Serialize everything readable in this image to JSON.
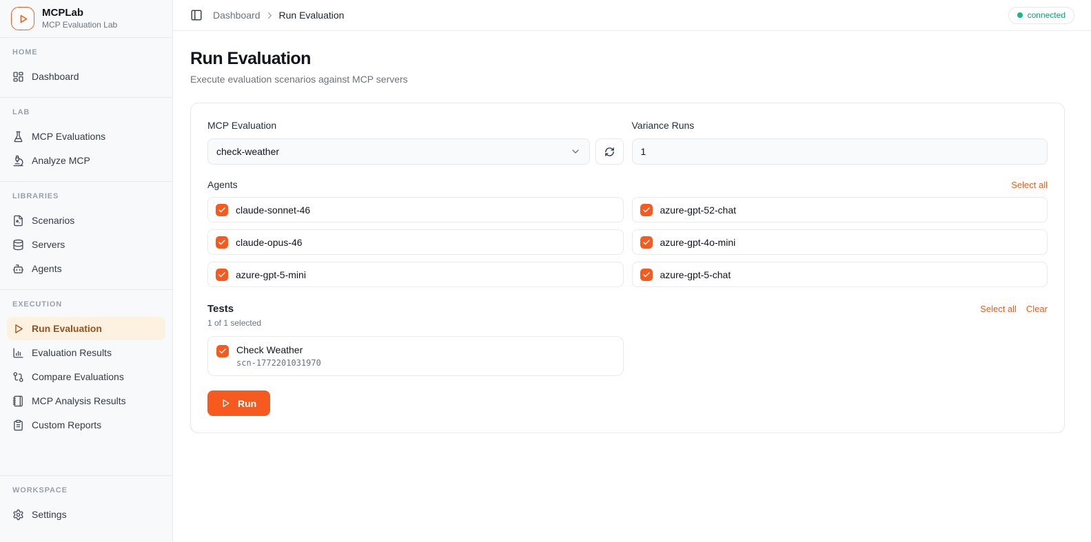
{
  "colors": {
    "accent": "#f65a1e",
    "accent-soft": "#fdf1e0",
    "active-text": "#9a501d",
    "status-green": "#0f9d6e",
    "status-dot": "#12b981"
  },
  "app": {
    "name": "MCPLab",
    "tagline": "MCP Evaluation Lab"
  },
  "topbar": {
    "breadcrumb": {
      "parent": "Dashboard",
      "current": "Run Evaluation"
    },
    "status": {
      "label": "connected"
    }
  },
  "sidebar": {
    "sections": [
      {
        "heading": "HOME",
        "items": [
          {
            "label": "Dashboard",
            "icon": "dashboard-grid-icon",
            "active": false
          }
        ]
      },
      {
        "heading": "LAB",
        "items": [
          {
            "label": "MCP Evaluations",
            "icon": "flask-icon",
            "active": false
          },
          {
            "label": "Analyze MCP",
            "icon": "microscope-icon",
            "active": false
          }
        ]
      },
      {
        "heading": "LIBRARIES",
        "items": [
          {
            "label": "Scenarios",
            "icon": "file-icon",
            "active": false
          },
          {
            "label": "Servers",
            "icon": "database-icon",
            "active": false
          },
          {
            "label": "Agents",
            "icon": "bot-icon",
            "active": false
          }
        ]
      },
      {
        "heading": "EXECUTION",
        "items": [
          {
            "label": "Run Evaluation",
            "icon": "play-icon",
            "active": true
          },
          {
            "label": "Evaluation Results",
            "icon": "bar-chart-icon",
            "active": false
          },
          {
            "label": "Compare Evaluations",
            "icon": "git-compare-icon",
            "active": false
          },
          {
            "label": "MCP Analysis Results",
            "icon": "notebook-icon",
            "active": false
          },
          {
            "label": "Custom Reports",
            "icon": "clipboard-icon",
            "active": false
          }
        ]
      },
      {
        "heading": "WORKSPACE",
        "items": [
          {
            "label": "Settings",
            "icon": "gear-icon",
            "active": false
          }
        ]
      }
    ]
  },
  "page": {
    "title": "Run Evaluation",
    "subtitle": "Execute evaluation scenarios against MCP servers"
  },
  "form": {
    "evaluation": {
      "label": "MCP Evaluation",
      "value": "check-weather"
    },
    "variance_runs": {
      "label": "Variance Runs",
      "value": "1"
    },
    "agents": {
      "label": "Agents",
      "select_all": "Select all",
      "items": [
        {
          "name": "claude-sonnet-46",
          "checked": true
        },
        {
          "name": "azure-gpt-52-chat",
          "checked": true
        },
        {
          "name": "claude-opus-46",
          "checked": true
        },
        {
          "name": "azure-gpt-4o-mini",
          "checked": true
        },
        {
          "name": "azure-gpt-5-mini",
          "checked": true
        },
        {
          "name": "azure-gpt-5-chat",
          "checked": true
        }
      ]
    },
    "tests": {
      "label": "Tests",
      "select_all": "Select all",
      "clear": "Clear",
      "summary": "1 of 1 selected",
      "items": [
        {
          "name": "Check Weather",
          "id": "scn-1772201031970",
          "checked": true
        }
      ]
    },
    "run": {
      "label": "Run"
    }
  }
}
